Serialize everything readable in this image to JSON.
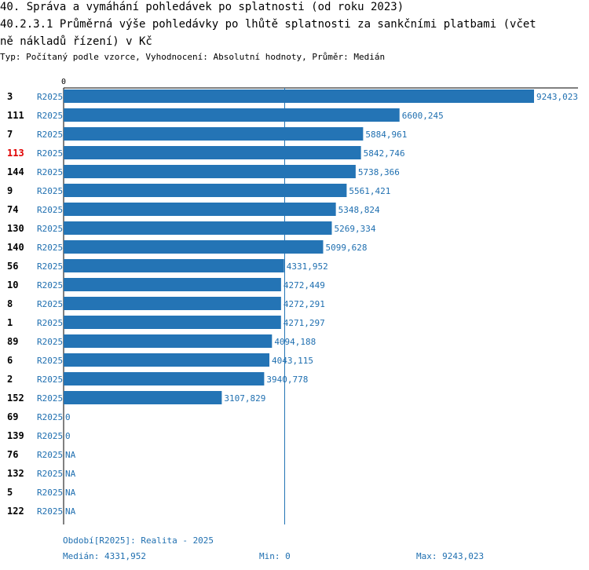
{
  "header": {
    "title": "40. Správa a vymáhání pohledávek po splatnosti (od roku 2023)",
    "subtitle_line1": "40.2.3.1 Průměrná výše pohledávky po lhůtě splatnosti za sankčními platbami (včet",
    "subtitle_line2": "ně nákladů řízení) v Kč",
    "type_line": "Typ: Počítaný podle vzorce, Vyhodnocení: Absolutní hodnoty, Průměr: Medián"
  },
  "footer": {
    "period": "Období[R2025]: Realita - 2025",
    "median": "Medián: 4331,952",
    "min": "Min: 0",
    "max": "Max: 9243,023"
  },
  "colors": {
    "bar": "#2474b5",
    "label": "#1f6fb0",
    "highlight": "#e00000",
    "axis": "#000000",
    "median_line": "#2474b5"
  },
  "chart_data": {
    "type": "bar",
    "orientation": "horizontal",
    "axis_zero_label": "0",
    "xlim": [
      0,
      9243.023
    ],
    "median": 4331.952,
    "highlighted_category": "113",
    "rows": [
      {
        "id": "3",
        "period": "R2025",
        "value": 9243.023,
        "label": "9243,023"
      },
      {
        "id": "111",
        "period": "R2025",
        "value": 6600.245,
        "label": "6600,245"
      },
      {
        "id": "7",
        "period": "R2025",
        "value": 5884.961,
        "label": "5884,961"
      },
      {
        "id": "113",
        "period": "R2025",
        "value": 5842.746,
        "label": "5842,746"
      },
      {
        "id": "144",
        "period": "R2025",
        "value": 5738.366,
        "label": "5738,366"
      },
      {
        "id": "9",
        "period": "R2025",
        "value": 5561.421,
        "label": "5561,421"
      },
      {
        "id": "74",
        "period": "R2025",
        "value": 5348.824,
        "label": "5348,824"
      },
      {
        "id": "130",
        "period": "R2025",
        "value": 5269.334,
        "label": "5269,334"
      },
      {
        "id": "140",
        "period": "R2025",
        "value": 5099.628,
        "label": "5099,628"
      },
      {
        "id": "56",
        "period": "R2025",
        "value": 4331.952,
        "label": "4331,952"
      },
      {
        "id": "10",
        "period": "R2025",
        "value": 4272.449,
        "label": "4272,449"
      },
      {
        "id": "8",
        "period": "R2025",
        "value": 4272.291,
        "label": "4272,291"
      },
      {
        "id": "1",
        "period": "R2025",
        "value": 4271.297,
        "label": "4271,297"
      },
      {
        "id": "89",
        "period": "R2025",
        "value": 4094.188,
        "label": "4094,188"
      },
      {
        "id": "6",
        "period": "R2025",
        "value": 4043.115,
        "label": "4043,115"
      },
      {
        "id": "2",
        "period": "R2025",
        "value": 3940.778,
        "label": "3940,778"
      },
      {
        "id": "152",
        "period": "R2025",
        "value": 3107.829,
        "label": "3107,829"
      },
      {
        "id": "69",
        "period": "R2025",
        "value": 0,
        "label": "0"
      },
      {
        "id": "139",
        "period": "R2025",
        "value": 0,
        "label": "0"
      },
      {
        "id": "76",
        "period": "R2025",
        "value": null,
        "label": "NA"
      },
      {
        "id": "132",
        "period": "R2025",
        "value": null,
        "label": "NA"
      },
      {
        "id": "5",
        "period": "R2025",
        "value": null,
        "label": "NA"
      },
      {
        "id": "122",
        "period": "R2025",
        "value": null,
        "label": "NA"
      }
    ]
  }
}
